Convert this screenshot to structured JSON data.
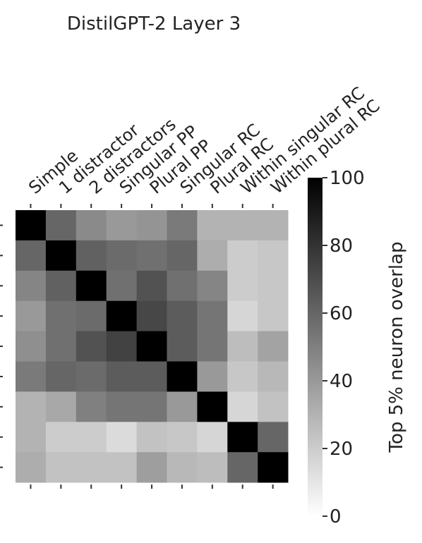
{
  "chart_data": {
    "type": "heatmap",
    "title": "DistilGPT-2 Layer 3",
    "x_categories": [
      "Simple",
      "1 distractor",
      "2 distractors",
      "Singular PP",
      "Plural PP",
      "Singular RC",
      "Plural RC",
      "Within singular RC",
      "Within plural RC"
    ],
    "y_categories": [
      "",
      "",
      "",
      "",
      "",
      "",
      "",
      "",
      ""
    ],
    "values": [
      [
        100,
        60,
        46,
        40,
        42,
        52,
        30,
        30,
        30
      ],
      [
        60,
        100,
        62,
        58,
        56,
        60,
        32,
        20,
        22
      ],
      [
        48,
        62,
        100,
        56,
        68,
        56,
        48,
        20,
        22
      ],
      [
        40,
        56,
        58,
        100,
        72,
        64,
        54,
        16,
        22
      ],
      [
        44,
        56,
        68,
        74,
        100,
        64,
        54,
        26,
        36
      ],
      [
        52,
        60,
        58,
        64,
        64,
        100,
        40,
        22,
        28
      ],
      [
        30,
        34,
        50,
        54,
        54,
        40,
        100,
        16,
        24
      ],
      [
        30,
        20,
        20,
        14,
        24,
        22,
        16,
        100,
        60
      ],
      [
        32,
        24,
        24,
        24,
        38,
        28,
        26,
        60,
        100
      ]
    ],
    "colorbar": {
      "label": "Top 5% neuron overlap",
      "min": 0,
      "max": 100,
      "ticks": [
        0,
        20,
        40,
        60,
        80,
        100
      ],
      "colormap": "Greys",
      "low_color": "#ffffff",
      "high_color": "#000000"
    }
  }
}
